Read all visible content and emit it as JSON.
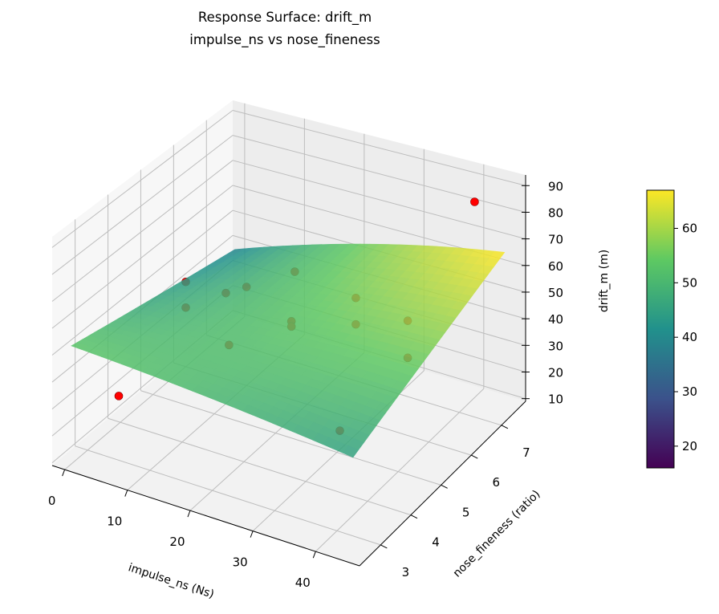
{
  "chart_data": {
    "type": "surface3d",
    "title": "Response Surface: drift_m",
    "subtitle": "impulse_ns vs nose_fineness",
    "xlabel": "impulse_ns (Ns)",
    "ylabel": "nose_fineness (ratio)",
    "zlabel": "drift_m (m)",
    "xlim": [
      -2,
      47
    ],
    "ylim": [
      2.3,
      7.8
    ],
    "zlim": [
      9,
      94
    ],
    "xticks": [
      0,
      10,
      20,
      30,
      40
    ],
    "yticks": [
      3,
      4,
      5,
      6,
      7
    ],
    "zticks": [
      10,
      20,
      30,
      40,
      50,
      60,
      70,
      80,
      90
    ],
    "grid": true,
    "colormap": "viridis",
    "colorbar": {
      "range": [
        16,
        67
      ],
      "ticks": [
        20,
        30,
        40,
        50,
        60
      ]
    },
    "surface": {
      "x_range": [
        0,
        45
      ],
      "y_range": [
        2.5,
        7.5
      ],
      "corner_values": {
        "x0_y0": 54,
        "x1_y0": 46,
        "x1_y1": 68,
        "x0_y1": 40
      }
    },
    "points": [
      {
        "x": 5,
        "y": 3,
        "z": 33
      },
      {
        "x": 0,
        "y": 6,
        "z": 42
      },
      {
        "x": 0,
        "y": 6,
        "z": 32
      },
      {
        "x": 5,
        "y": 6.3,
        "z": 38
      },
      {
        "x": 10,
        "y": 6,
        "z": 47
      },
      {
        "x": 10,
        "y": 7.5,
        "z": 37
      },
      {
        "x": 15,
        "y": 4.5,
        "z": 44
      },
      {
        "x": 20,
        "y": 5.5,
        "z": 46
      },
      {
        "x": 20,
        "y": 5.5,
        "z": 44
      },
      {
        "x": 28,
        "y": 6,
        "z": 55
      },
      {
        "x": 28,
        "y": 6,
        "z": 45
      },
      {
        "x": 34,
        "y": 6.5,
        "z": 45
      },
      {
        "x": 34,
        "y": 6.5,
        "z": 31
      },
      {
        "x": 38,
        "y": 3.5,
        "z": 39
      },
      {
        "x": 40,
        "y": 7.5,
        "z": 83
      }
    ],
    "point_color": "#ff0000"
  }
}
